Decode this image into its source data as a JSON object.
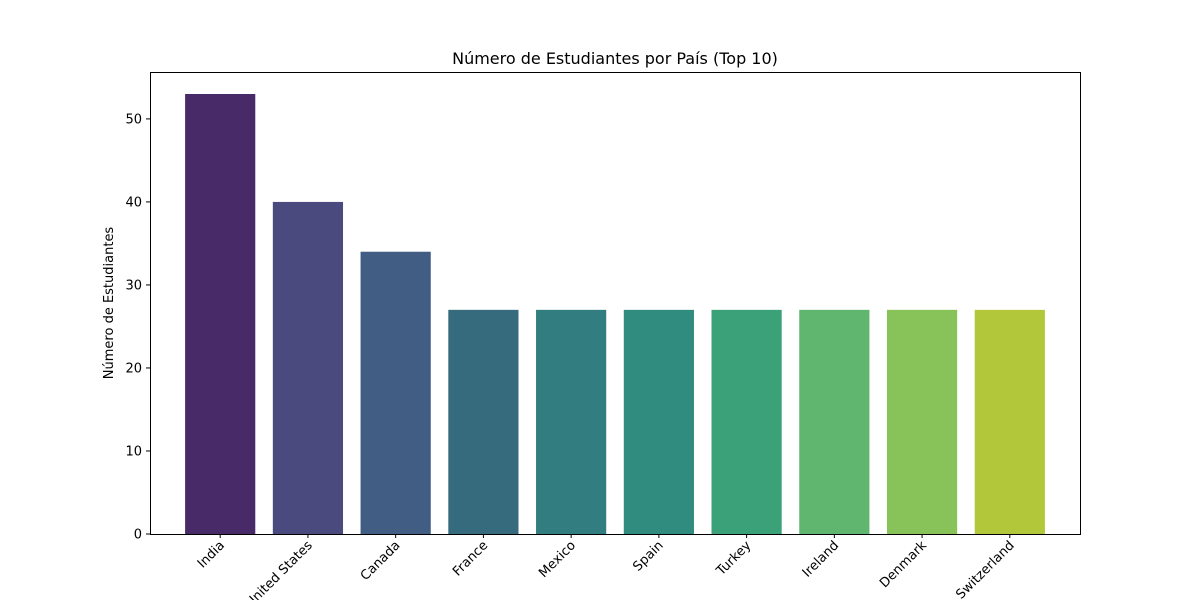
{
  "chart_data": {
    "type": "bar",
    "title": "Número de Estudiantes por País (Top 10)",
    "xlabel": "",
    "ylabel": "Número de Estudiantes",
    "categories": [
      "India",
      "United States",
      "Canada",
      "France",
      "Mexico",
      "Spain",
      "Turkey",
      "Ireland",
      "Denmark",
      "Switzerland"
    ],
    "values": [
      53,
      40,
      34,
      27,
      27,
      27,
      27,
      27,
      27,
      27
    ],
    "colors": [
      "#482a69",
      "#4a4a7e",
      "#425d83",
      "#366b7d",
      "#327d80",
      "#2f8c7e",
      "#3aa178",
      "#60b56f",
      "#88c35a",
      "#b2c73a"
    ],
    "ylim": [
      0,
      55.65
    ],
    "yticks": [
      0,
      10,
      20,
      30,
      40,
      50
    ],
    "grid": false,
    "legend": "none",
    "xtick_rotation": 45
  }
}
